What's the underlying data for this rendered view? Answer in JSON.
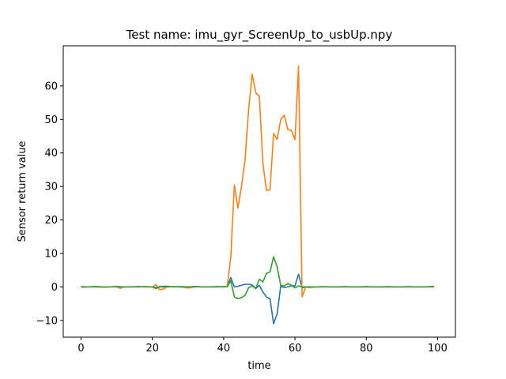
{
  "chart_data": {
    "type": "line",
    "title": "Test name: imu_gyr_ScreenUp_to_usbUp.npy",
    "xlabel": "time",
    "ylabel": "Sensor return value",
    "xlim": [
      -5,
      105
    ],
    "ylim": [
      -15,
      72
    ],
    "xticks": [
      0,
      20,
      40,
      60,
      80,
      100
    ],
    "yticks": [
      -10,
      0,
      10,
      20,
      30,
      40,
      50,
      60
    ],
    "grid": false,
    "series": [
      {
        "color": "#1f77b4",
        "x": [
          0,
          2,
          4,
          6,
          8,
          10,
          12,
          14,
          16,
          18,
          20,
          21,
          22,
          24,
          26,
          28,
          30,
          32,
          34,
          36,
          38,
          40,
          41,
          42,
          43,
          44,
          45,
          46,
          47,
          48,
          49,
          50,
          51,
          52,
          53,
          54,
          55,
          56,
          57,
          58,
          59,
          60,
          61,
          62,
          63,
          64,
          66,
          68,
          70,
          72,
          74,
          76,
          78,
          80,
          82,
          84,
          86,
          88,
          90,
          92,
          94,
          96,
          98,
          99
        ],
        "y": [
          0.1,
          0.0,
          0.1,
          0.0,
          0.0,
          0.1,
          0.0,
          0.0,
          0.1,
          0.0,
          0.0,
          -0.2,
          0.1,
          0.2,
          0.0,
          0.1,
          0.0,
          0.1,
          0.0,
          0.0,
          0.1,
          0.0,
          0.2,
          2.8,
          0.0,
          0.2,
          0.5,
          0.8,
          0.8,
          0.6,
          -0.5,
          0.5,
          -1.5,
          -3.0,
          -3.5,
          -11.0,
          -8.0,
          0.2,
          -0.2,
          0.0,
          0.3,
          0.3,
          3.8,
          -0.3,
          0.0,
          0.0,
          0.0,
          0.0,
          0.0,
          0.0,
          0.0,
          0.0,
          0.0,
          0.0,
          0.0,
          0.0,
          0.0,
          0.0,
          0.0,
          0.0,
          0.0,
          0.0,
          0.0,
          0.0
        ]
      },
      {
        "color": "#ff7f0e",
        "x": [
          0,
          2,
          4,
          6,
          8,
          10,
          11,
          12,
          14,
          16,
          18,
          20,
          21,
          22,
          23,
          24,
          26,
          28,
          30,
          32,
          34,
          36,
          38,
          40,
          41,
          42,
          43,
          44,
          45,
          46,
          47,
          48,
          49,
          50,
          51,
          52,
          53,
          54,
          55,
          56,
          57,
          58,
          59,
          60,
          61,
          62,
          63,
          64,
          66,
          68,
          70,
          72,
          74,
          76,
          78,
          80,
          82,
          84,
          86,
          88,
          90,
          92,
          94,
          96,
          98,
          99
        ],
        "y": [
          -0.1,
          0.0,
          0.0,
          -0.1,
          0.0,
          0.0,
          -0.4,
          0.0,
          0.0,
          0.0,
          0.0,
          0.0,
          0.7,
          -0.8,
          -0.7,
          0.0,
          0.0,
          0.0,
          -0.3,
          0.0,
          0.0,
          0.0,
          0.0,
          0.0,
          0.2,
          9.0,
          30.5,
          23.5,
          30.0,
          38.0,
          53.0,
          63.5,
          58.0,
          57.0,
          37.0,
          28.8,
          29.0,
          45.8,
          44.0,
          50.0,
          51.3,
          47.0,
          46.7,
          44.0,
          66.0,
          -3.0,
          0.0,
          -0.2,
          0.0,
          0.0,
          0.0,
          0.0,
          0.0,
          0.0,
          0.0,
          0.0,
          0.0,
          0.0,
          0.0,
          0.0,
          0.0,
          0.0,
          0.0,
          0.0,
          0.0,
          0.0
        ]
      },
      {
        "color": "#2ca02c",
        "x": [
          0,
          2,
          4,
          6,
          8,
          10,
          12,
          14,
          16,
          18,
          20,
          21,
          22,
          24,
          26,
          28,
          30,
          32,
          34,
          36,
          38,
          40,
          41,
          42,
          43,
          44,
          45,
          46,
          47,
          48,
          49,
          50,
          51,
          52,
          53,
          54,
          55,
          56,
          57,
          58,
          59,
          60,
          61,
          62,
          63,
          64,
          66,
          68,
          70,
          72,
          74,
          76,
          78,
          80,
          82,
          84,
          86,
          88,
          90,
          92,
          94,
          96,
          98,
          99
        ],
        "y": [
          0.0,
          0.0,
          0.1,
          0.0,
          0.0,
          0.1,
          0.0,
          0.0,
          0.0,
          0.1,
          0.0,
          -0.5,
          0.0,
          0.0,
          0.1,
          0.0,
          0.0,
          0.1,
          0.0,
          0.0,
          0.0,
          0.1,
          0.0,
          1.8,
          -3.0,
          -3.5,
          -3.2,
          -2.5,
          -0.2,
          0.3,
          -0.5,
          2.3,
          1.5,
          4.0,
          4.5,
          9.0,
          6.0,
          0.5,
          0.3,
          1.0,
          0.5,
          -0.3,
          0.3,
          0.0,
          0.0,
          0.0,
          0.0,
          0.1,
          0.0,
          0.0,
          0.1,
          0.0,
          0.0,
          0.1,
          0.0,
          0.0,
          0.1,
          0.0,
          0.0,
          0.1,
          0.0,
          0.0,
          0.1,
          0.1
        ]
      }
    ]
  }
}
